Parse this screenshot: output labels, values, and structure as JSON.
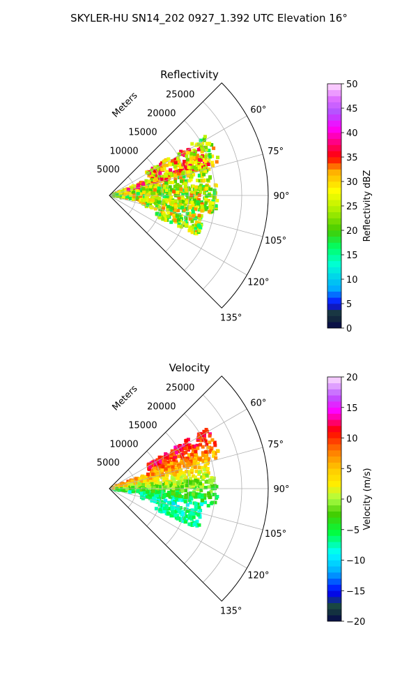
{
  "figure": {
    "suptitle": "SKYLER-HU  SN14_202  0927_1.392 UTC Elevation 16°"
  },
  "chart_data": [
    {
      "type": "heatmap",
      "title": "Reflectivity",
      "range_label": "Meters",
      "range_ticks": [
        5000,
        10000,
        15000,
        20000,
        25000
      ],
      "range_max": 30000,
      "azimuth_range": [
        45,
        135
      ],
      "azimuth_ticks": [
        "60°",
        "75°",
        "90°",
        "105°",
        "120°",
        "135°"
      ],
      "grid": true,
      "colorbar": {
        "label": "Reflectivity dBZ",
        "min": 0,
        "max": 50,
        "ticks": [
          "0",
          "5",
          "10",
          "15",
          "20",
          "25",
          "30",
          "35",
          "40",
          "45",
          "50"
        ]
      }
    },
    {
      "type": "heatmap",
      "title": "Velocity",
      "range_label": "Meters",
      "range_ticks": [
        5000,
        10000,
        15000,
        20000,
        25000
      ],
      "range_max": 30000,
      "azimuth_range": [
        45,
        135
      ],
      "azimuth_ticks": [
        "60°",
        "75°",
        "90°",
        "105°",
        "120°",
        "135°"
      ],
      "grid": true,
      "colorbar": {
        "label": "Velocity (m/s)",
        "min": -20,
        "max": 20,
        "ticks": [
          "−20",
          "−15",
          "−10",
          "−5",
          "0",
          "5",
          "10",
          "15",
          "20"
        ]
      }
    }
  ]
}
